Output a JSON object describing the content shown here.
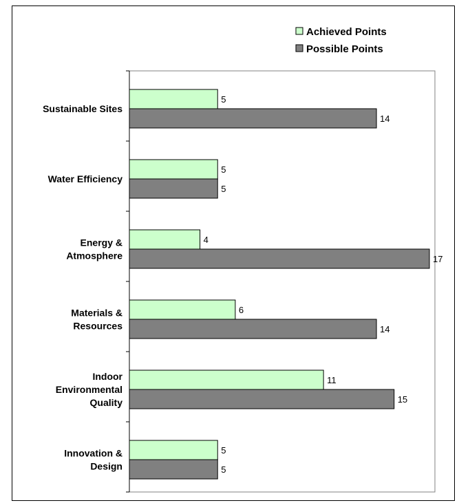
{
  "chart_data": {
    "type": "bar",
    "orientation": "horizontal",
    "categories": [
      [
        "Sustainable Sites"
      ],
      [
        "Water Efficiency"
      ],
      [
        "Energy &",
        "Atmosphere"
      ],
      [
        "Materials &",
        "Resources"
      ],
      [
        "Indoor",
        "Environmental",
        "Quality"
      ],
      [
        "Innovation &",
        "Design"
      ]
    ],
    "series": [
      {
        "name": "Achieved Points",
        "color": "#ccffcc",
        "values": [
          5,
          5,
          4,
          6,
          11,
          5
        ]
      },
      {
        "name": "Possible Points",
        "color": "#808080",
        "values": [
          14,
          5,
          17,
          14,
          15,
          5
        ]
      }
    ],
    "xlim": [
      0,
      17
    ],
    "grid": false,
    "legend_position": "top-right",
    "data_labels": true
  }
}
